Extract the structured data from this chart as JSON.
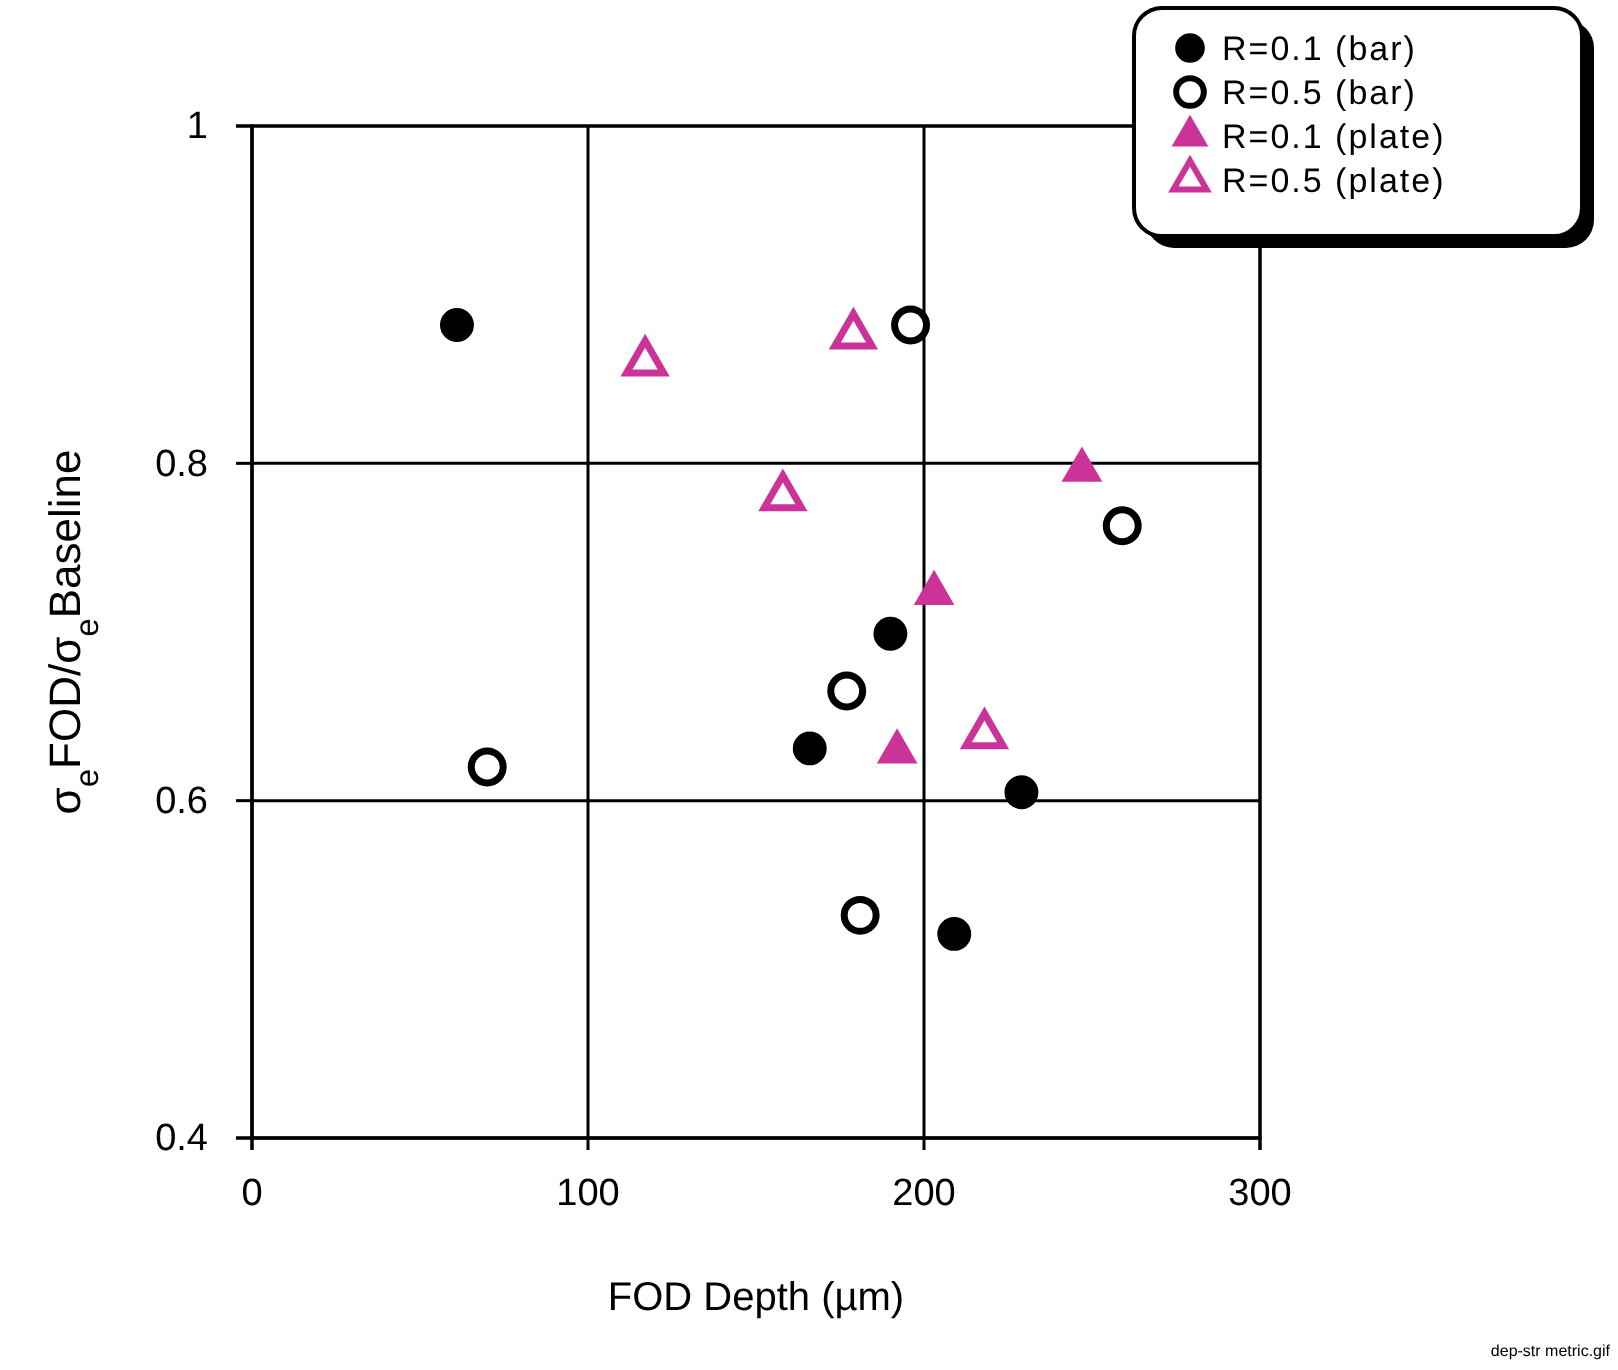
{
  "chart_data": {
    "type": "scatter",
    "xlabel": "FOD Depth (µm)",
    "ylabel": "σ$_{e}$FOD/σ$_{e}$Baseline",
    "xlim": [
      0,
      300
    ],
    "xticks": [
      0,
      100,
      200,
      300
    ],
    "ylim": [
      0.4,
      1
    ],
    "yticks": [
      0.4,
      0.6,
      0.8,
      1
    ],
    "grid": true,
    "legend": "top right",
    "series": [
      {
        "name": "R=0.1 (bar)",
        "color": "#000000",
        "marker": "circle",
        "x": [
          61,
          166,
          190,
          229,
          209
        ],
        "values": [
          0.882,
          0.631,
          0.699,
          0.605,
          0.521
        ]
      },
      {
        "name": "R=0.5 (bar)",
        "color": "#000000",
        "marker": "circle",
        "x": [
          70,
          196,
          259,
          177,
          181
        ],
        "values": [
          0.62,
          0.882,
          0.763,
          0.665,
          0.532
        ]
      },
      {
        "name": "R=0.1 (plate)",
        "color": "#cc3399",
        "marker": "triangle",
        "x": [
          247,
          203,
          192
        ],
        "values": [
          0.796,
          0.723,
          0.629
        ]
      },
      {
        "name": "R=0.5 (plate)",
        "color": "#cc3399",
        "marker": "triangle",
        "x": [
          117,
          179,
          158,
          218
        ],
        "values": [
          0.86,
          0.876,
          0.78,
          0.639
        ]
      }
    ],
    "annotations": [
      "dep-str metric.gif"
    ]
  }
}
